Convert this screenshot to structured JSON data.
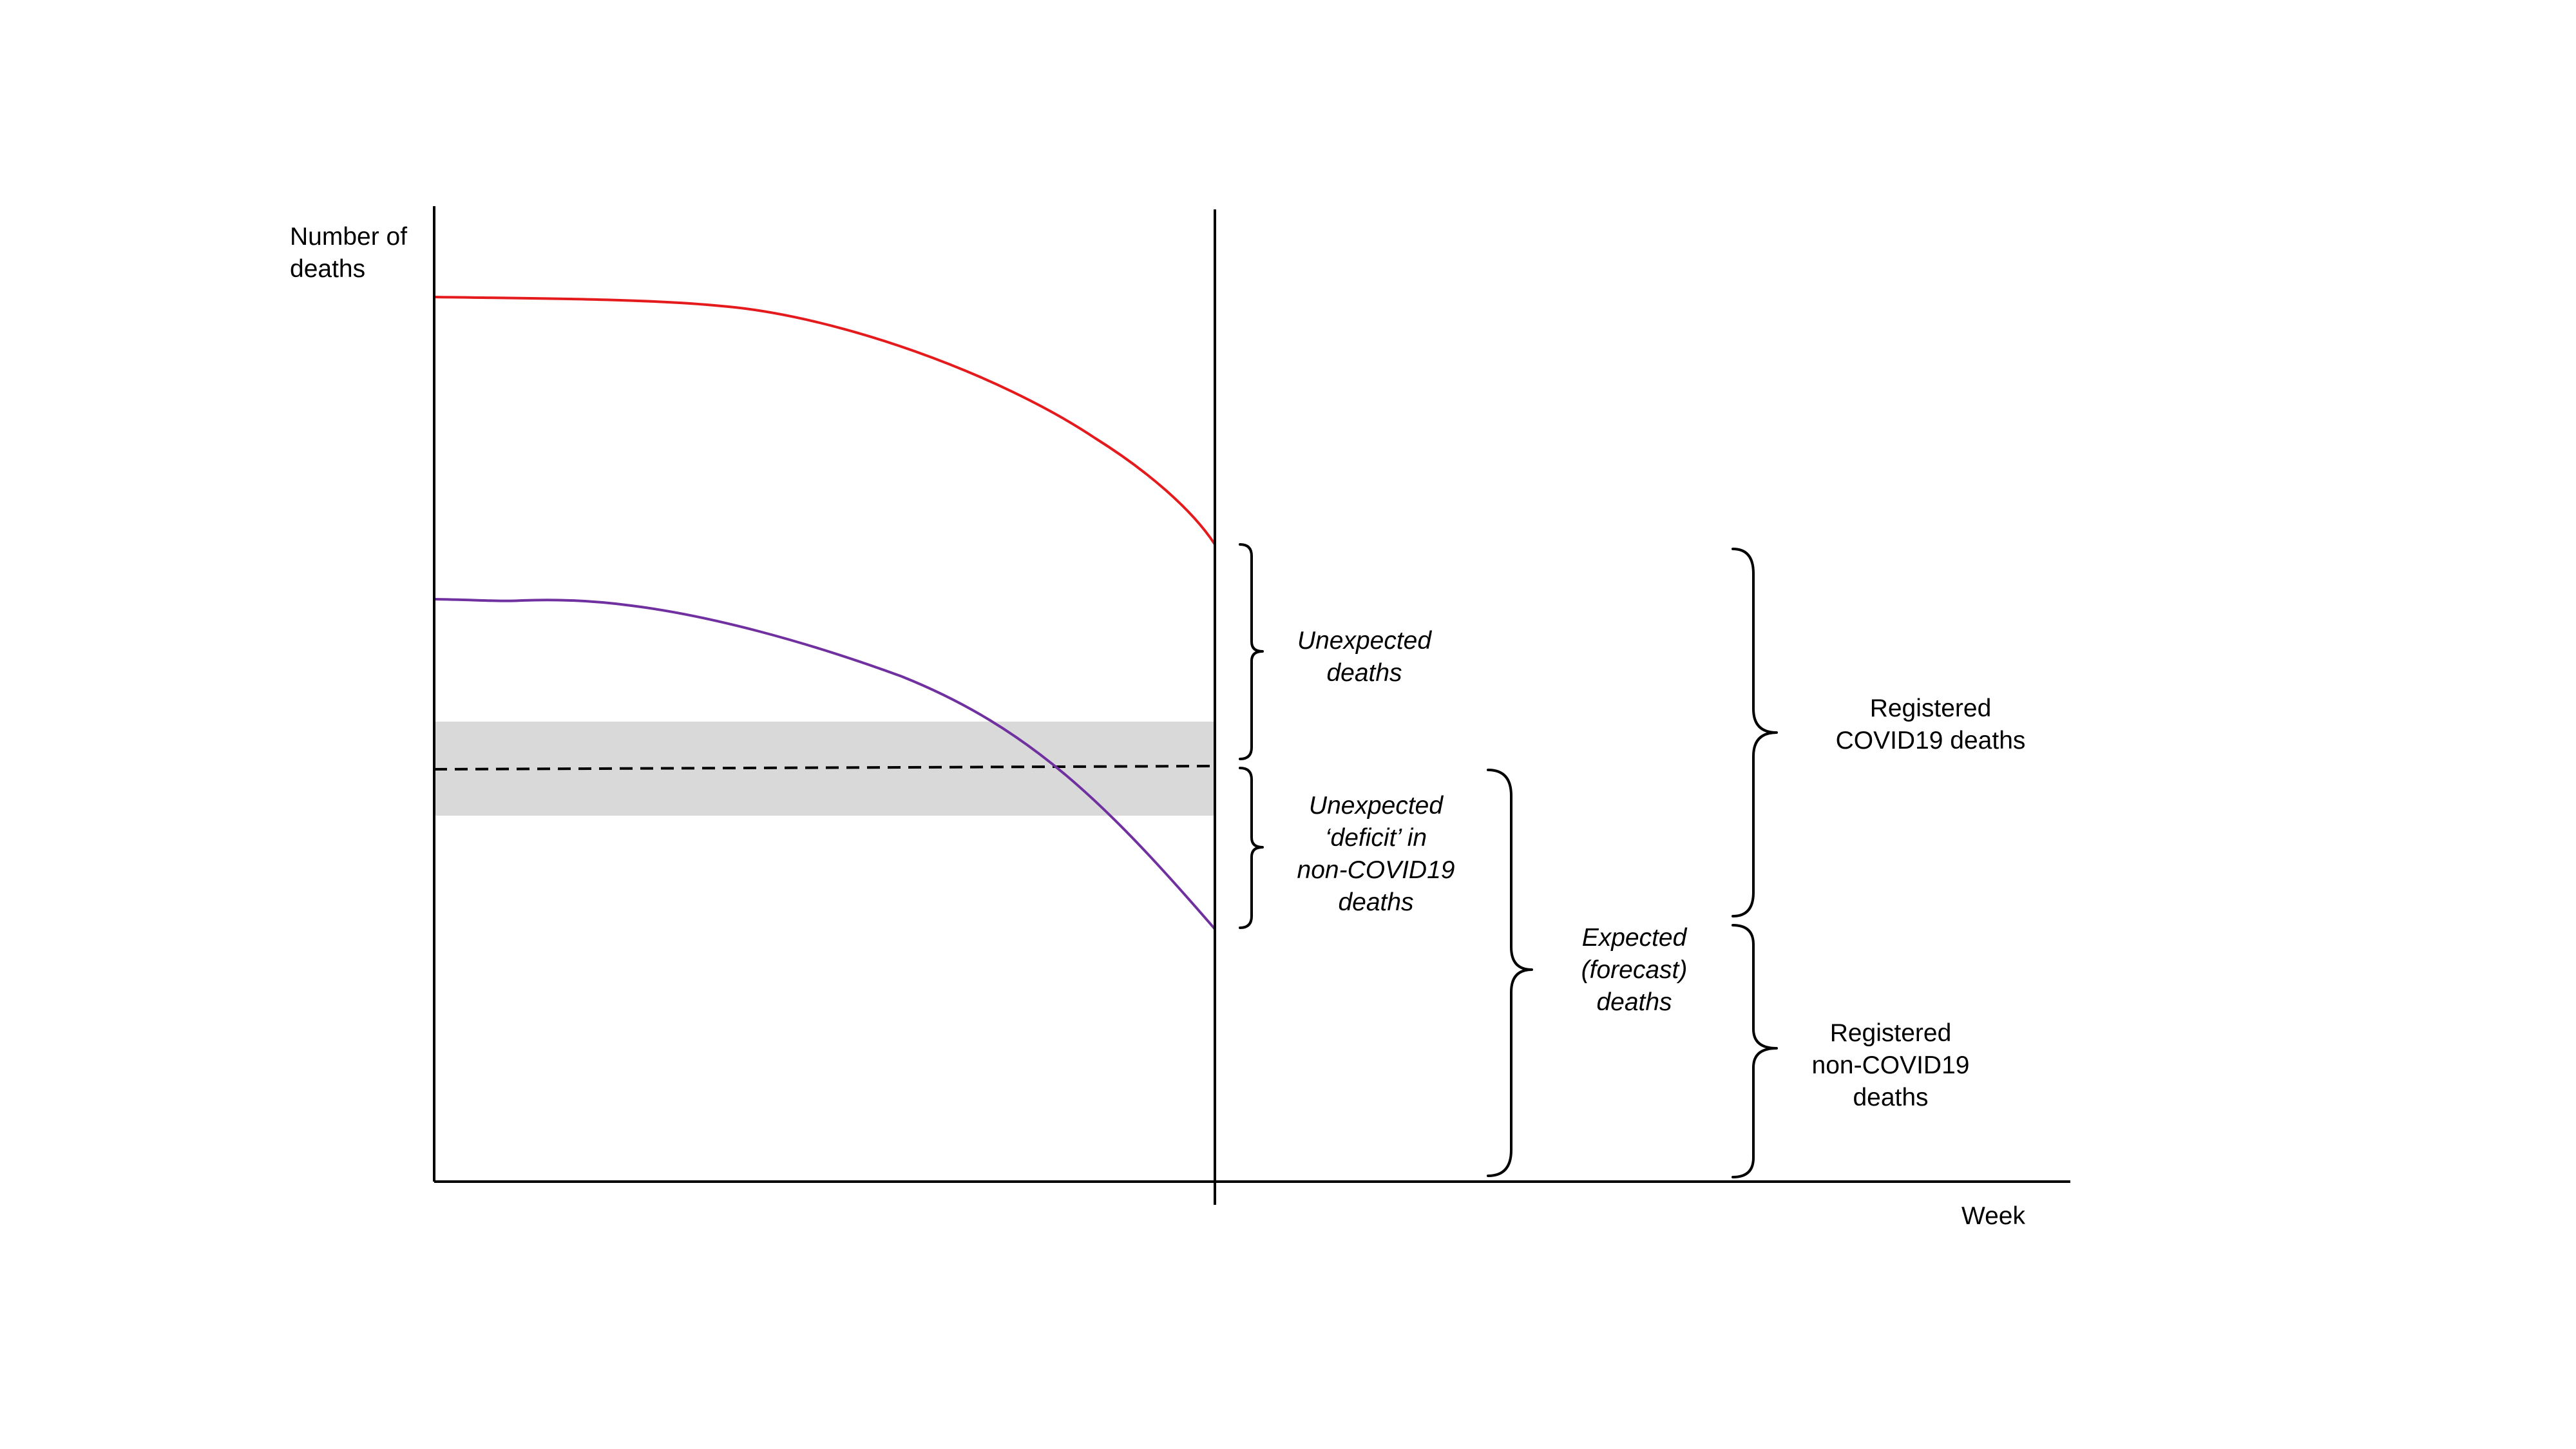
{
  "axes": {
    "y_label_line1": "Number of",
    "y_label_line2": "deaths",
    "x_label": "Week"
  },
  "labels": {
    "unexpected_deaths": [
      "Unexpected",
      "deaths"
    ],
    "deficit": [
      "Unexpected",
      "‘deficit’ in",
      "non-COVID19",
      "deaths"
    ],
    "expected": [
      "Expected",
      "(forecast)",
      "deaths"
    ],
    "registered_covid": [
      "Registered",
      "COVID19 deaths"
    ],
    "registered_non_covid": [
      "Registered",
      "non-COVID19",
      "deaths"
    ]
  },
  "colors": {
    "registered_total_line": "#e41a1c",
    "non_covid_line": "#7030a0",
    "expected_line": "#000000",
    "confidence_band": "#d9d9d9",
    "axes": "#000000"
  }
}
